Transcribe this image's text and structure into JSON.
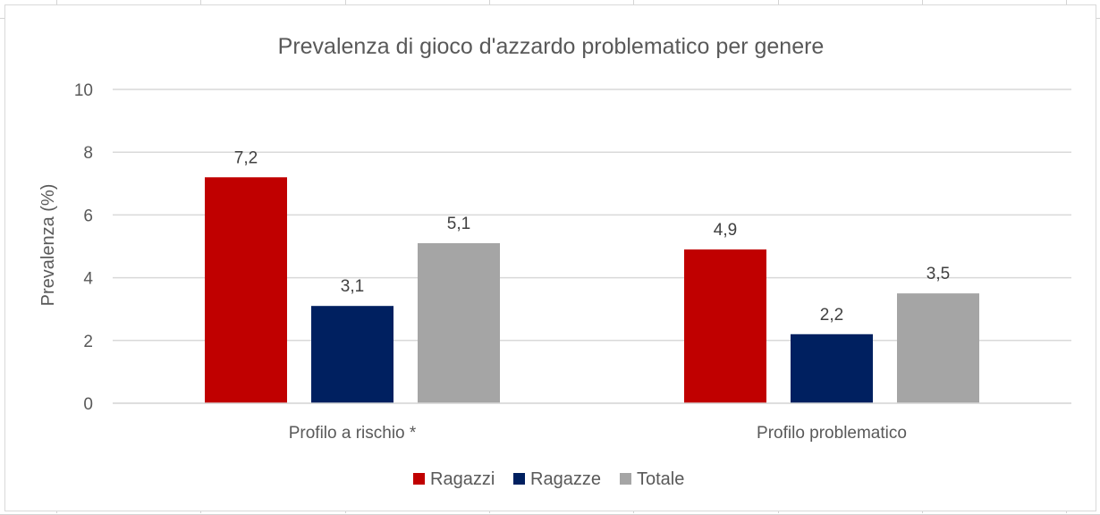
{
  "chart_data": {
    "type": "bar",
    "title": "Prevalenza di gioco d'azzardo problematico per genere",
    "xlabel": "",
    "ylabel": "Prevalenza (%)",
    "ylim": [
      0,
      10
    ],
    "yticks": [
      "0",
      "2",
      "4",
      "6",
      "8",
      "10"
    ],
    "yticks_values": [
      0,
      2,
      4,
      6,
      8,
      10
    ],
    "grid": true,
    "legend_position": "bottom",
    "categories": [
      "Profilo a rischio *",
      "Profilo problematico"
    ],
    "series": [
      {
        "name": "Ragazzi",
        "color": "#C00000",
        "values": [
          7.2,
          4.9
        ],
        "labels": [
          "7,2",
          "4,9"
        ]
      },
      {
        "name": "Ragazze",
        "color": "#002060",
        "values": [
          3.1,
          2.2
        ],
        "labels": [
          "3,1",
          "2,2"
        ]
      },
      {
        "name": "Totale",
        "color": "#A5A5A5",
        "values": [
          5.1,
          3.5
        ],
        "labels": [
          "5,1",
          "3,5"
        ]
      }
    ]
  }
}
